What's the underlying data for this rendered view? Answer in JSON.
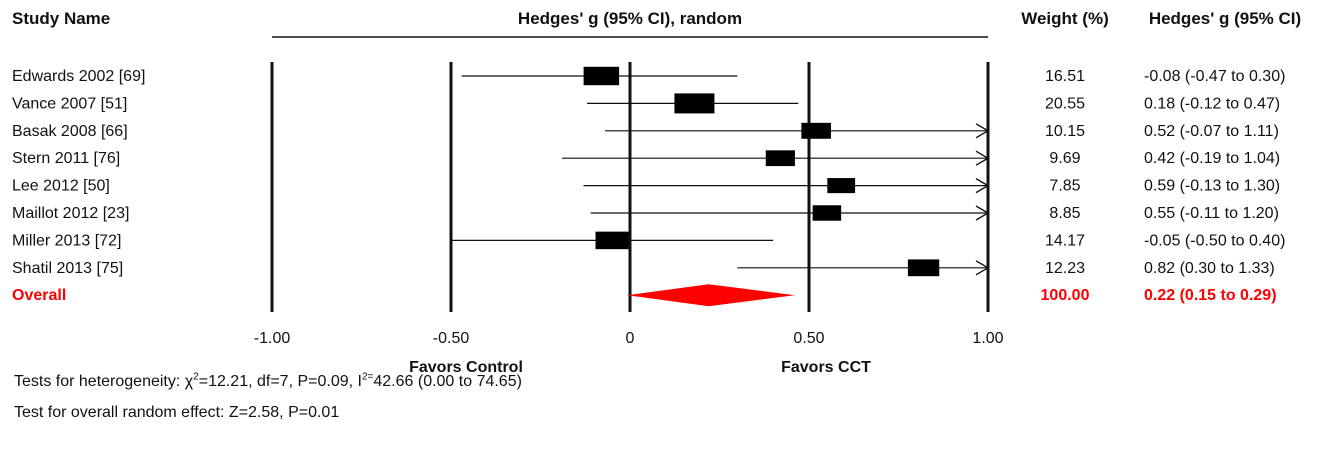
{
  "chart_data": {
    "type": "forest",
    "headers": {
      "study": "Study Name",
      "plot": "Hedges' g (95% CI), random",
      "weight": "Weight (%)",
      "effect": "Hedges' g (95% CI)"
    },
    "studies": [
      {
        "name": "Edwards 2002 [69]",
        "g": -0.08,
        "lower": -0.47,
        "upper": 0.3,
        "weight": 16.51,
        "weight_text": "16.51",
        "ci_text": "-0.08 (-0.47 to 0.30)"
      },
      {
        "name": "Vance 2007 [51]",
        "g": 0.18,
        "lower": -0.12,
        "upper": 0.47,
        "weight": 20.55,
        "weight_text": "20.55",
        "ci_text": "0.18 (-0.12 to 0.47)"
      },
      {
        "name": "Basak 2008 [66]",
        "g": 0.52,
        "lower": -0.07,
        "upper": 1.11,
        "weight": 10.15,
        "weight_text": "10.15",
        "ci_text": "0.52 (-0.07 to 1.11)"
      },
      {
        "name": "Stern 2011 [76]",
        "g": 0.42,
        "lower": -0.19,
        "upper": 1.04,
        "weight": 9.69,
        "weight_text": "9.69",
        "ci_text": "0.42 (-0.19 to 1.04)"
      },
      {
        "name": "Lee 2012 [50]",
        "g": 0.59,
        "lower": -0.13,
        "upper": 1.3,
        "weight": 7.85,
        "weight_text": "7.85",
        "ci_text": "0.59 (-0.13 to 1.30)"
      },
      {
        "name": "Maillot 2012 [23]",
        "g": 0.55,
        "lower": -0.11,
        "upper": 1.2,
        "weight": 8.85,
        "weight_text": "8.85",
        "ci_text": "0.55 (-0.11 to 1.20)"
      },
      {
        "name": "Miller 2013 [72]",
        "g": -0.05,
        "lower": -0.5,
        "upper": 0.4,
        "weight": 14.17,
        "weight_text": "14.17",
        "ci_text": "-0.05 (-0.50 to 0.40)"
      },
      {
        "name": "Shatil 2013 [75]",
        "g": 0.82,
        "lower": 0.3,
        "upper": 1.33,
        "weight": 12.23,
        "weight_text": "12.23",
        "ci_text": "0.82 (0.30 to 1.33)"
      }
    ],
    "overall": {
      "name": "Overall",
      "g": 0.22,
      "lower": 0.15,
      "upper": 0.29,
      "weight_text": "100.00",
      "ci_text": "0.22 (0.15 to 0.29)",
      "color": "#ff0000"
    },
    "xlim": [
      -1.0,
      1.0
    ],
    "xticks": [
      {
        "value": -1.0,
        "label": "-1.00"
      },
      {
        "value": -0.5,
        "label": "-0.50"
      },
      {
        "value": 0.0,
        "label": "0"
      },
      {
        "value": 0.5,
        "label": "0.50"
      },
      {
        "value": 1.0,
        "label": "1.00"
      }
    ],
    "favors_left": "Favors Control",
    "favors_right": "Favors CCT",
    "marker_color": "#000000"
  },
  "footer": {
    "het_prefix": "Tests for heterogeneity: χ",
    "het_chi_sup": "2",
    "het_mid": "=12.21, df=7, P=0.09, I",
    "het_i_sup": "2=",
    "het_rest": "42.66 (0.00 to 74.65)",
    "overall_test": "Test for overall random effect: Z=2.58, P=0.01"
  }
}
